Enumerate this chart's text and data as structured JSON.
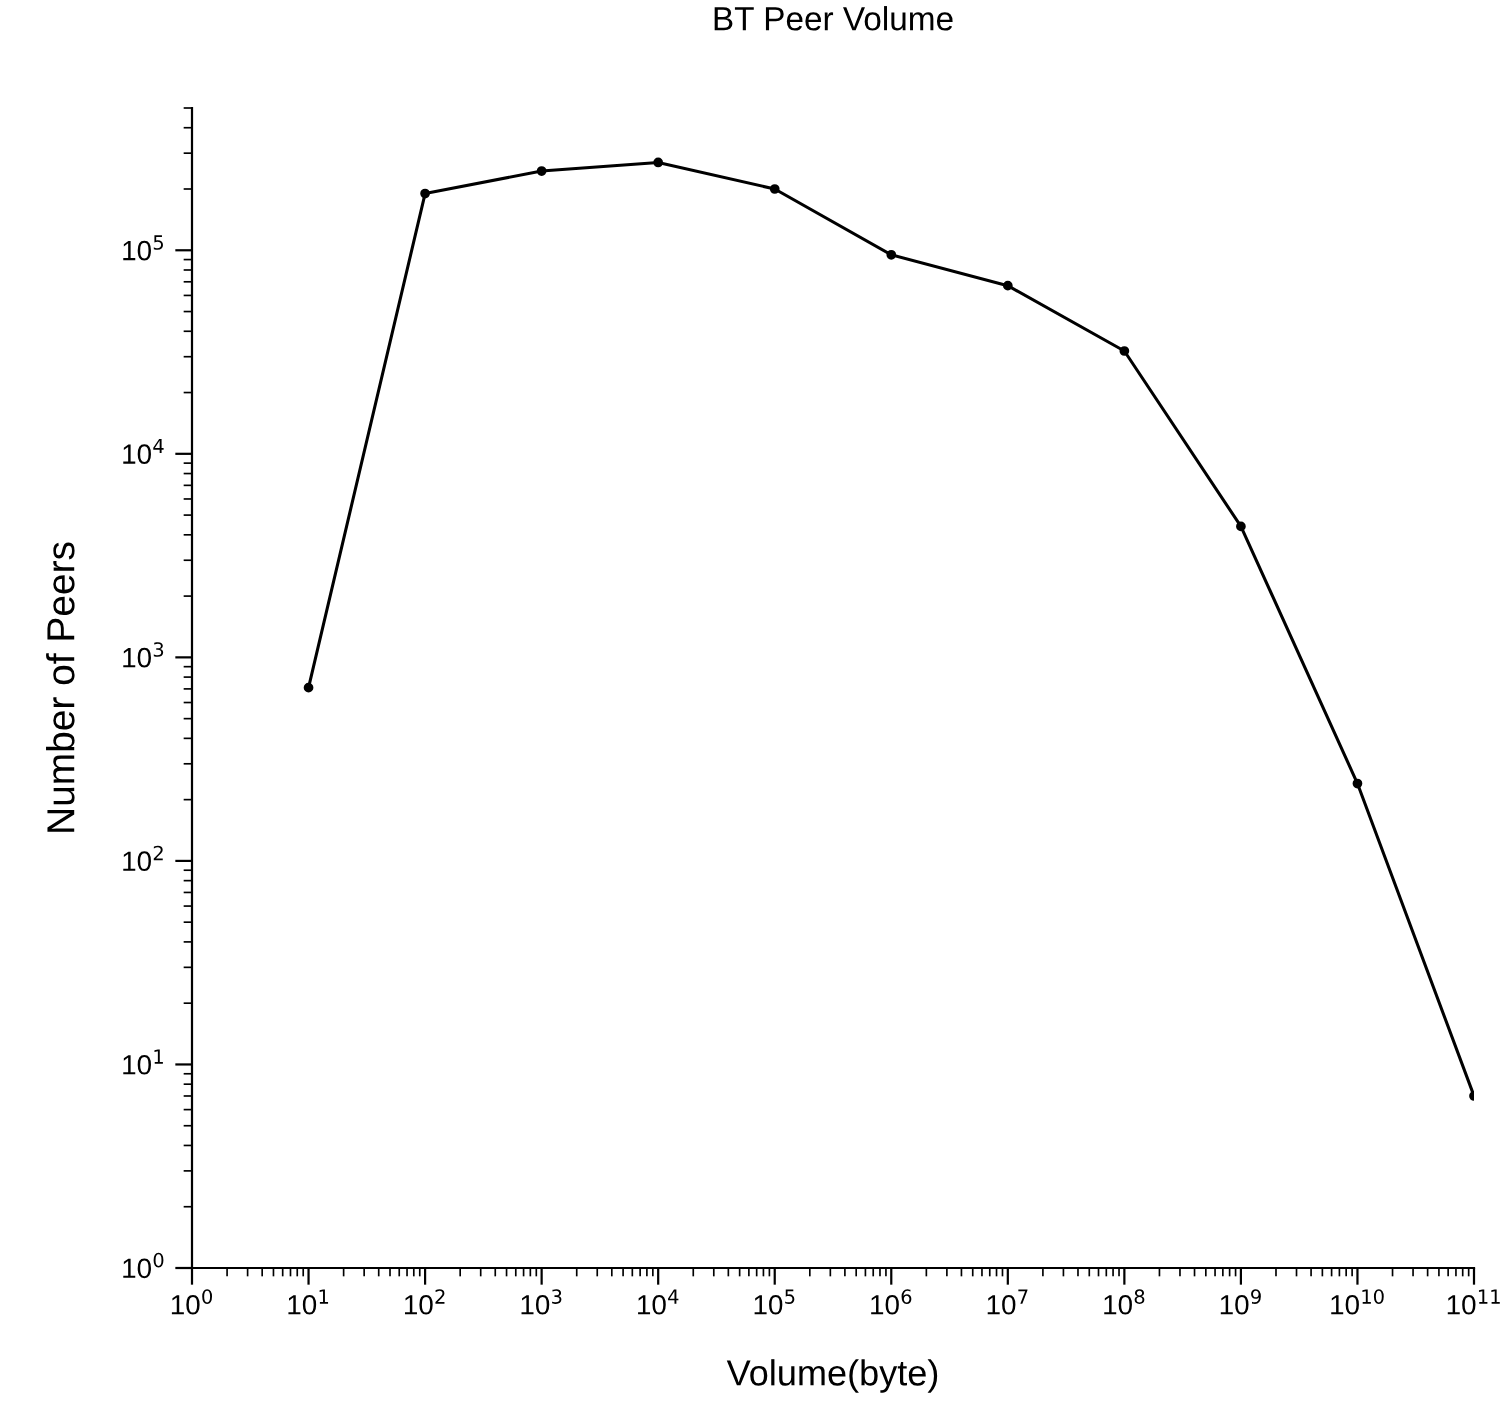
{
  "chart_data": {
    "type": "line",
    "title": "BT Peer Volume",
    "xlabel": "Volume(byte)",
    "ylabel": "Number of Peers",
    "log": "xy",
    "xlim": [
      1,
      100000000000
    ],
    "ylim": [
      1,
      500000
    ],
    "xticks": [
      {
        "value": 1,
        "label": "10$^{0}$"
      },
      {
        "value": 10,
        "label": "10$^{1}$"
      },
      {
        "value": 100,
        "label": "10$^{2}$"
      },
      {
        "value": 1000,
        "label": "10$^{3}$"
      },
      {
        "value": 10000,
        "label": "10$^{4}$"
      },
      {
        "value": 100000,
        "label": "10$^{5}$"
      },
      {
        "value": 1000000,
        "label": "10$^{6}$"
      },
      {
        "value": 10000000,
        "label": "10$^{7}$"
      },
      {
        "value": 100000000,
        "label": "10$^{8}$"
      },
      {
        "value": 1000000000,
        "label": "10$^{9}$"
      },
      {
        "value": 10000000000,
        "label": "10$^{10}$"
      },
      {
        "value": 100000000000,
        "label": "10$^{11}$"
      }
    ],
    "yticks": [
      {
        "value": 1,
        "label": "10$^{0}$"
      },
      {
        "value": 10,
        "label": "10$^{1}$"
      },
      {
        "value": 100,
        "label": "10$^{2}$"
      },
      {
        "value": 1000,
        "label": "10$^{3}$"
      },
      {
        "value": 10000,
        "label": "10$^{4}$"
      },
      {
        "value": 100000,
        "label": "10$^{5}$"
      }
    ],
    "x": [
      10,
      100,
      1000,
      10000,
      100000,
      1000000,
      10000000,
      100000000,
      1000000000,
      10000000000,
      100000000000
    ],
    "series": [
      {
        "color": "#000000",
        "values": [
          710,
          190000,
          245000,
          270000,
          200000,
          95000,
          67000,
          32000,
          4400,
          240,
          7
        ]
      }
    ],
    "marker": "circle",
    "line_style": "solid",
    "grid": false,
    "legend": false
  }
}
